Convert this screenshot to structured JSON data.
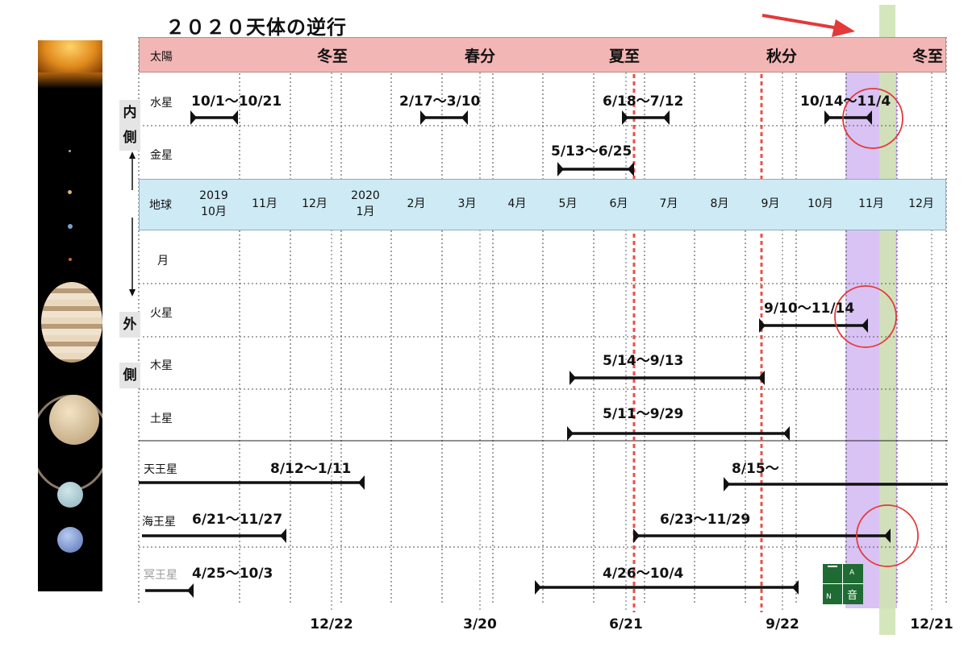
{
  "title": "２０２０天体の逆行",
  "sun": {
    "label": "太陽",
    "seasons": [
      "冬至",
      "春分",
      "夏至",
      "秋分",
      "冬至"
    ]
  },
  "earth": {
    "label": "地球",
    "months": [
      "2019\n10月",
      "11月",
      "12月",
      "2020\n1月",
      "2月",
      "3月",
      "4月",
      "5月",
      "6月",
      "7月",
      "8月",
      "9月",
      "10月",
      "11月",
      "12月"
    ]
  },
  "side_labels": {
    "inner_1": "内",
    "inner_2": "側",
    "outer_1": "外",
    "outer_2": "側"
  },
  "rows": {
    "mercury": {
      "label": "水星",
      "ranges": [
        "10/1〜10/21",
        "2/17〜3/10",
        "6/18〜7/12",
        "10/14〜11/4"
      ]
    },
    "venus": {
      "label": "金星",
      "ranges": [
        "5/13〜6/25"
      ]
    },
    "moon": {
      "label": "月"
    },
    "mars": {
      "label": "火星",
      "ranges": [
        "9/10〜11/14"
      ]
    },
    "jupiter": {
      "label": "木星",
      "ranges": [
        "5/14〜9/13"
      ]
    },
    "saturn": {
      "label": "土星",
      "ranges": [
        "5/11〜9/29"
      ]
    },
    "uranus": {
      "label": "天王星",
      "ranges": [
        "8/12〜1/11",
        "8/15〜"
      ]
    },
    "neptune": {
      "label": "海王星",
      "ranges": [
        "6/21〜11/27",
        "6/23〜11/29"
      ]
    },
    "pluto": {
      "label": "冥王星",
      "ranges": [
        "4/25〜10/3",
        "4/26〜10/4"
      ]
    }
  },
  "bottom_dates": [
    "12/22",
    "3/20",
    "6/21",
    "9/22",
    "12/21"
  ],
  "logo": {
    "text": [
      "A",
      "N",
      "音"
    ]
  },
  "colors": {
    "sun_band": "#f2b6b4",
    "earth_band": "#cdeaf5",
    "highlight_purple": "#c9a8f0",
    "highlight_green": "#cfe3b5",
    "red_guides": "#e8504a",
    "bars": "#111111"
  }
}
